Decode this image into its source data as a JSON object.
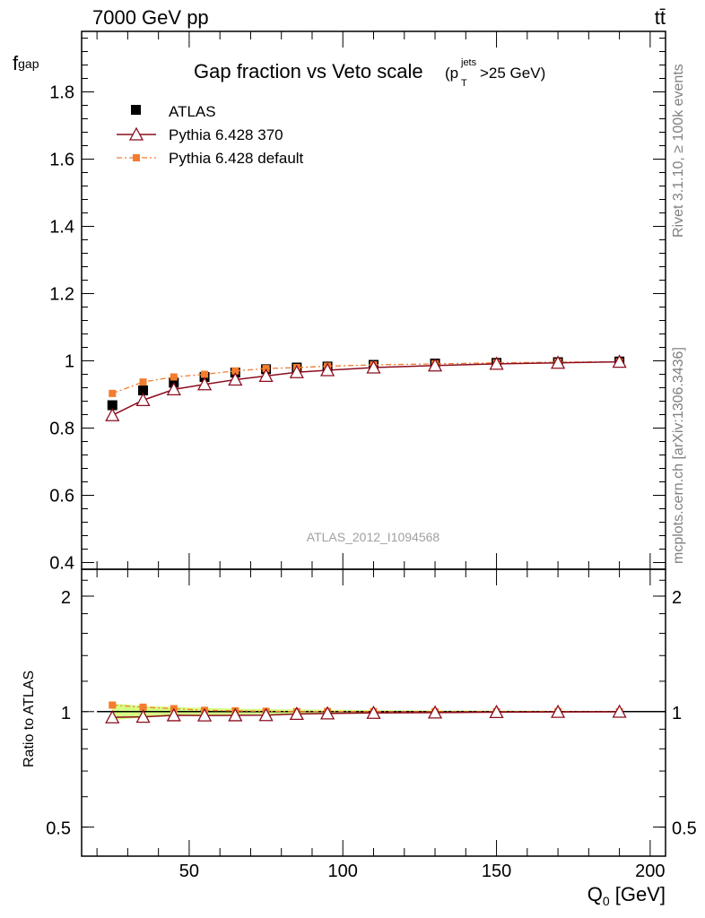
{
  "header": {
    "process": "7000 GeV pp",
    "final_state": "tt̄"
  },
  "side_labels": {
    "right_top": "Rivet 3.1.10, ≥ 100k events",
    "right_bottom": "mcplots.cern.ch [arXiv:1306.3436]"
  },
  "analysis_watermark": "ATLAS_2012_I1094568",
  "chart_data": [
    {
      "type": "scatter",
      "panel": "main",
      "title_main": "Gap fraction vs Veto scale",
      "title_cut_p": "(p",
      "title_cut_sup": "jets",
      "title_cut_sub": "T",
      "title_cut_rest": ">25 GeV)",
      "ylabel_main": "f",
      "ylabel_sub": "gap",
      "ylim": [
        0.38,
        1.98
      ],
      "yticks": [
        0.4,
        0.6,
        0.8,
        1,
        1.2,
        1.4,
        1.6,
        1.8
      ],
      "ytick_labels": [
        "0.4",
        "0.6",
        "0.8",
        "1",
        "1.2",
        "1.4",
        "1.6",
        "1.8"
      ],
      "xlim": [
        15,
        205
      ],
      "x": [
        25,
        35,
        45,
        55,
        65,
        75,
        85,
        95,
        110,
        130,
        150,
        170,
        190
      ],
      "legend_placement": "top-left",
      "series": [
        {
          "name": "ATLAS",
          "style": "data",
          "color": "#000000",
          "values": [
            0.868,
            0.912,
            0.935,
            0.952,
            0.965,
            0.975,
            0.98,
            0.983,
            0.988,
            0.992,
            0.994,
            0.996,
            0.998
          ]
        },
        {
          "name": "Pythia 6.428 370",
          "style": "line-triangle",
          "color": "#8b0d1f",
          "values": [
            0.838,
            0.883,
            0.915,
            0.93,
            0.944,
            0.955,
            0.966,
            0.972,
            0.98,
            0.986,
            0.991,
            0.994,
            0.997
          ]
        },
        {
          "name": "Pythia 6.428 default",
          "style": "dashdot-square",
          "color": "#f47c2e",
          "values": [
            0.903,
            0.937,
            0.952,
            0.96,
            0.97,
            0.977,
            0.98,
            0.984,
            0.988,
            0.991,
            0.994,
            0.996,
            0.997
          ]
        }
      ]
    },
    {
      "type": "scatter",
      "panel": "ratio",
      "ylabel": "Ratio to ATLAS",
      "ylim": [
        0.42,
        2.35
      ],
      "log_y": true,
      "yticks": [
        0.5,
        1,
        2
      ],
      "ytick_labels": [
        "0.5",
        "1",
        "2"
      ],
      "xlim": [
        15,
        205
      ],
      "xticks": [
        50,
        100,
        150,
        200
      ],
      "xtick_labels": [
        "50",
        "100",
        "150",
        "200"
      ],
      "xlabel_main": "Q",
      "xlabel_sub": "0",
      "xlabel_unit": " [GeV]",
      "x": [
        25,
        35,
        45,
        55,
        65,
        75,
        85,
        95,
        110,
        130,
        150,
        170,
        190
      ],
      "band_color": "#ccff66",
      "band_upper": [
        1.05,
        1.035,
        1.028,
        1.022,
        1.018,
        1.015,
        1.013,
        1.011,
        1.009,
        1.007,
        1.006,
        1.005,
        1.004
      ],
      "band_lower": [
        0.95,
        0.965,
        0.972,
        0.978,
        0.982,
        0.985,
        0.987,
        0.989,
        0.991,
        0.993,
        0.994,
        0.995,
        0.996
      ],
      "series": [
        {
          "name": "Pythia 6.428 370",
          "style": "line-triangle",
          "color": "#8b0d1f",
          "values": [
            0.966,
            0.969,
            0.978,
            0.977,
            0.978,
            0.979,
            0.986,
            0.989,
            0.992,
            0.994,
            0.997,
            0.998,
            0.999
          ]
        },
        {
          "name": "Pythia 6.428 default",
          "style": "dashdot-square",
          "color": "#f47c2e",
          "values": [
            1.04,
            1.027,
            1.018,
            1.008,
            1.005,
            1.002,
            1.0,
            1.001,
            1.0,
            0.999,
            1.0,
            1.0,
            0.999
          ]
        }
      ]
    }
  ]
}
